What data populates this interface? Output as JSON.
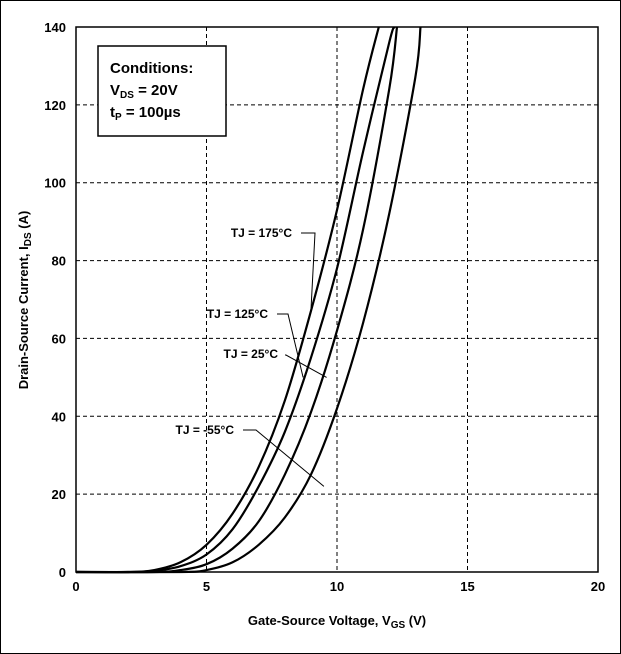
{
  "chart_data": {
    "type": "line",
    "title": "",
    "xlabel": "Gate-Source Voltage, V",
    "xlabel_sub": "GS",
    "xlabel_unit": " (V)",
    "ylabel": "Drain-Source Current, I",
    "ylabel_sub": "DS",
    "ylabel_unit": " (A)",
    "xlim": [
      0,
      20
    ],
    "ylim": [
      0,
      140
    ],
    "xticks": [
      "0",
      "5",
      "10",
      "15",
      "20"
    ],
    "yticks": [
      "0",
      "20",
      "40",
      "60",
      "80",
      "100",
      "120",
      "140"
    ],
    "grid": true,
    "conditions": {
      "title": "Conditions:",
      "vds_main": "V",
      "vds_sub": "DS",
      "vds_value": " = 20V",
      "tp_main": "t",
      "tp_sub": "P",
      "tp_value": " = 100µs"
    },
    "series": [
      {
        "name": "TJ = 175°C",
        "x": [
          0,
          2,
          3,
          4,
          5,
          6,
          7,
          8,
          9,
          10,
          11,
          11.6
        ],
        "y": [
          0,
          0,
          0.5,
          2.5,
          7,
          15,
          27,
          44,
          67,
          93,
          124,
          140
        ]
      },
      {
        "name": "TJ = 125°C",
        "x": [
          0,
          2,
          3,
          4,
          5,
          6,
          7,
          8,
          9,
          10,
          11,
          12,
          12.2
        ],
        "y": [
          0,
          0,
          0.3,
          1.5,
          4.5,
          11,
          22,
          36,
          55,
          78,
          108,
          136,
          140
        ]
      },
      {
        "name": "TJ = 25°C",
        "x": [
          0,
          3,
          4,
          5,
          6,
          7,
          8,
          9,
          10,
          11,
          12,
          12.3
        ],
        "y": [
          0,
          0,
          0.5,
          2,
          6,
          13,
          25,
          41,
          62,
          88,
          124,
          140
        ]
      },
      {
        "name": "TJ = -55°C",
        "x": [
          0,
          4,
          5,
          6,
          7,
          8,
          9,
          10,
          11,
          12,
          13,
          13.2
        ],
        "y": [
          0,
          0,
          0.5,
          2.5,
          7,
          14,
          25,
          42,
          64,
          92,
          127,
          140
        ]
      }
    ],
    "annotations": [
      {
        "text": "TJ = 175°C",
        "series": 0,
        "x": 9.0,
        "y": 67
      },
      {
        "text": "TJ = 125°C",
        "series": 1,
        "x": 8.7,
        "y": 50
      },
      {
        "text": "TJ = 25°C",
        "series": 2,
        "x": 9.6,
        "y": 50
      },
      {
        "text": "TJ = -55°C",
        "series": 3,
        "x": 9.5,
        "y": 22
      }
    ]
  }
}
